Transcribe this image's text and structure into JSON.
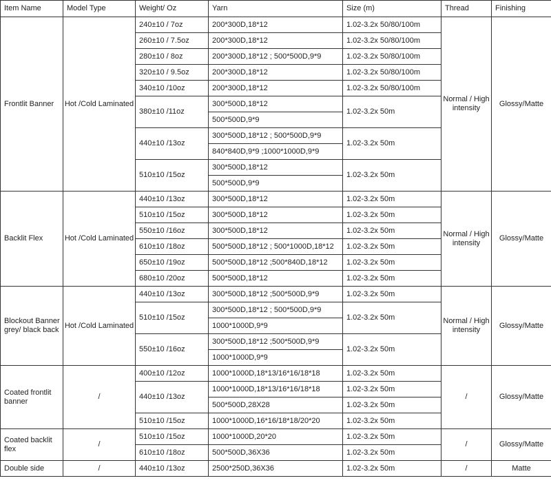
{
  "headers": [
    "Item Name",
    "Model Type",
    "Weight/ Oz",
    "Yarn",
    "Size (m)",
    "Thread",
    "Finishing"
  ],
  "groups": [
    {
      "item": "Frontlit Banner",
      "model": "Hot /Cold Laminated",
      "thread": "Normal / High intensity",
      "finishing": "Glossy/Matte",
      "weights": [
        {
          "weight": "240±10  / 7oz",
          "yarns": [
            "200*300D,18*12"
          ],
          "sizes": [
            "1.02-3.2x 50/80/100m"
          ]
        },
        {
          "weight": "260±10 / 7.5oz",
          "yarns": [
            "200*300D,18*12"
          ],
          "sizes": [
            "1.02-3.2x 50/80/100m"
          ]
        },
        {
          "weight": "280±10  / 8oz",
          "yarns": [
            "200*300D,18*12 ; 500*500D,9*9"
          ],
          "sizes": [
            "1.02-3.2x 50/80/100m"
          ]
        },
        {
          "weight": "320±10  / 9.5oz",
          "yarns": [
            "200*300D,18*12"
          ],
          "sizes": [
            "1.02-3.2x 50/80/100m"
          ]
        },
        {
          "weight": "340±10  /10oz",
          "yarns": [
            "200*300D,18*12"
          ],
          "sizes": [
            "1.02-3.2x 50/80/100m"
          ]
        },
        {
          "weight": "380±10  /11oz",
          "yarns": [
            "300*500D,18*12",
            "500*500D,9*9"
          ],
          "sizes": [
            "1.02-3.2x 50m"
          ]
        },
        {
          "weight": "440±10  /13oz",
          "yarns": [
            "300*500D,18*12 ; 500*500D,9*9",
            "840*840D,9*9 ;1000*1000D,9*9"
          ],
          "sizes": [
            "1.02-3.2x 50m"
          ]
        },
        {
          "weight": "510±10 /15oz",
          "yarns": [
            "300*500D,18*12",
            "500*500D,9*9"
          ],
          "sizes": [
            "1.02-3.2x 50m"
          ]
        }
      ]
    },
    {
      "item": "Backlit Flex",
      "model": "Hot /Cold Laminated",
      "thread": "Normal / High intensity",
      "finishing": "Glossy/Matte",
      "weights": [
        {
          "weight": "440±10  /13oz",
          "yarns": [
            "300*500D,18*12"
          ],
          "sizes": [
            "1.02-3.2x 50m"
          ]
        },
        {
          "weight": "510±10  /15oz",
          "yarns": [
            "300*500D,18*12"
          ],
          "sizes": [
            "1.02-3.2x 50m"
          ]
        },
        {
          "weight": "550±10  /16oz",
          "yarns": [
            "300*500D,18*12"
          ],
          "sizes": [
            "1.02-3.2x 50m"
          ]
        },
        {
          "weight": "610±10  /18oz",
          "yarns": [
            "500*500D,18*12 ; 500*1000D,18*12"
          ],
          "sizes": [
            "1.02-3.2x 50m"
          ]
        },
        {
          "weight": "650±10  /19oz",
          "yarns": [
            "500*500D,18*12 ;500*840D,18*12"
          ],
          "sizes": [
            "1.02-3.2x 50m"
          ]
        },
        {
          "weight": "680±10  /20oz",
          "yarns": [
            "500*500D,18*12"
          ],
          "sizes": [
            "1.02-3.2x 50m"
          ]
        }
      ]
    },
    {
      "item": "Blockout Banner grey/ black back",
      "model": "Hot /Cold Laminated",
      "thread": "Normal / High intensity",
      "finishing": "Glossy/Matte",
      "weights": [
        {
          "weight": "440±10  /13oz",
          "yarns": [
            "300*500D,18*12 ;500*500D,9*9"
          ],
          "sizes": [
            "1.02-3.2x 50m"
          ]
        },
        {
          "weight": "510±10  /15oz",
          "yarns": [
            "300*500D,18*12 ; 500*500D,9*9",
            "1000*1000D,9*9"
          ],
          "sizes": [
            "1.02-3.2x 50m"
          ]
        },
        {
          "weight": "550±10  /16oz",
          "yarns": [
            "300*500D,18*12 ;500*500D,9*9",
            "1000*1000D,9*9"
          ],
          "sizes": [
            "1.02-3.2x 50m"
          ]
        }
      ]
    },
    {
      "item": "Coated frontlit banner",
      "model": "/",
      "thread": "/",
      "finishing": "Glossy/Matte",
      "weights": [
        {
          "weight": "400±10  /12oz",
          "yarns": [
            "1000*1000D,18*13/16*16/18*18"
          ],
          "sizes": [
            "1.02-3.2x 50m"
          ]
        },
        {
          "weight": "440±10  /13oz",
          "yarns": [
            "1000*1000D,18*13/16*16/18*18",
            "500*500D,28X28"
          ],
          "sizes": [
            "1.02-3.2x 50m",
            "1.02-3.2x 50m"
          ]
        },
        {
          "weight": "510±10  /15oz",
          "yarns": [
            "1000*1000D,16*16/18*18/20*20"
          ],
          "sizes": [
            "1.02-3.2x 50m"
          ]
        }
      ]
    },
    {
      "item": "Coated backlit flex",
      "model": "/",
      "thread": "/",
      "finishing": "Glossy/Matte",
      "weights": [
        {
          "weight": "510±10  /15oz",
          "yarns": [
            "1000*1000D,20*20"
          ],
          "sizes": [
            "1.02-3.2x 50m"
          ]
        },
        {
          "weight": "610±10  /18oz",
          "yarns": [
            "500*500D,36X36"
          ],
          "sizes": [
            "1.02-3.2x 50m"
          ]
        }
      ]
    },
    {
      "item": "Double side",
      "model": "/",
      "thread": "/",
      "finishing": "Matte",
      "weights": [
        {
          "weight": "440±10  /13oz",
          "yarns": [
            "2500*250D,36X36"
          ],
          "sizes": [
            "1.02-3.2x 50m"
          ]
        }
      ]
    }
  ]
}
